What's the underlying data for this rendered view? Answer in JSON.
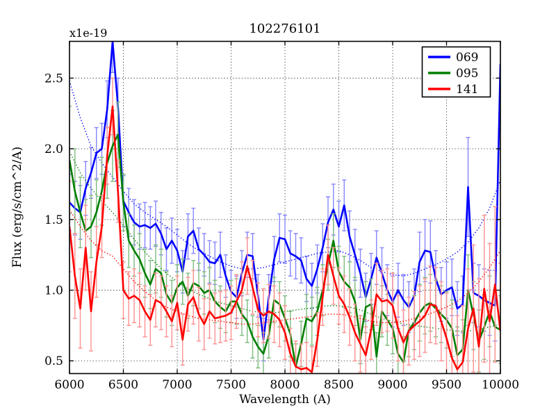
{
  "chart": {
    "title": "102276101",
    "offset_label": "x1e-19",
    "xlabel": "Wavelength (A)",
    "ylabel": "Flux (erg/s/cm^2/A)"
  },
  "chart_data": {
    "type": "line",
    "title": "102276101",
    "xlabel": "Wavelength (A)",
    "ylabel": "Flux (erg/s/cm^2/A)",
    "y_offset_label": "x1e-19",
    "xlim": [
      6000,
      10000
    ],
    "ylim": [
      0.41,
      2.76
    ],
    "grid": true,
    "legend_position": "upper right",
    "xticks": [
      6000,
      6500,
      7000,
      7500,
      8000,
      8500,
      9000,
      9500,
      10000
    ],
    "xtick_labels": [
      "6000",
      "6500",
      "7000",
      "7500",
      "8000",
      "8500",
      "9000",
      "9500",
      "10000"
    ],
    "yticks": [
      0.5,
      1.0,
      1.5,
      2.0,
      2.5
    ],
    "ytick_labels": [
      "0.5",
      "1.0",
      "1.5",
      "2.0",
      "2.5"
    ],
    "x": [
      6000,
      6050,
      6100,
      6150,
      6200,
      6250,
      6300,
      6350,
      6400,
      6450,
      6500,
      6550,
      6600,
      6650,
      6700,
      6750,
      6800,
      6850,
      6900,
      6950,
      7000,
      7050,
      7100,
      7150,
      7200,
      7250,
      7300,
      7350,
      7400,
      7450,
      7500,
      7550,
      7600,
      7650,
      7700,
      7750,
      7800,
      7850,
      7900,
      7950,
      8000,
      8050,
      8100,
      8150,
      8200,
      8250,
      8300,
      8350,
      8400,
      8450,
      8500,
      8550,
      8600,
      8650,
      8700,
      8750,
      8800,
      8850,
      8900,
      8950,
      9000,
      9050,
      9100,
      9150,
      9200,
      9250,
      9300,
      9350,
      9400,
      9450,
      9500,
      9550,
      9600,
      9650,
      9700,
      9750,
      9800,
      9850,
      9900,
      9950,
      10000
    ],
    "x_smooth": [
      6000,
      6100,
      6200,
      6300,
      6400,
      6500,
      6600,
      6700,
      6800,
      6900,
      7000,
      7100,
      7200,
      7300,
      7400,
      7500,
      7600,
      7700,
      7800,
      7900,
      8000,
      8100,
      8200,
      8300,
      8400,
      8500,
      8600,
      8700,
      8800,
      8900,
      9000,
      9100,
      9200,
      9300,
      9400,
      9500,
      9600,
      9700,
      9800,
      9900,
      10000
    ],
    "series": [
      {
        "name": "069",
        "color": "#0000ff",
        "err_color": "#8585ff",
        "flux": [
          1.62,
          1.58,
          1.55,
          1.72,
          1.83,
          1.97,
          2.0,
          2.28,
          2.76,
          2.3,
          1.63,
          1.55,
          1.48,
          1.45,
          1.46,
          1.44,
          1.47,
          1.4,
          1.29,
          1.35,
          1.28,
          1.13,
          1.38,
          1.42,
          1.29,
          1.25,
          1.2,
          1.19,
          1.25,
          1.1,
          0.99,
          0.95,
          1.12,
          1.25,
          1.24,
          0.96,
          0.65,
          0.95,
          1.22,
          1.37,
          1.36,
          1.26,
          1.24,
          1.21,
          1.08,
          1.03,
          1.15,
          1.3,
          1.48,
          1.57,
          1.45,
          1.6,
          1.38,
          1.25,
          1.12,
          0.95,
          1.08,
          1.23,
          1.12,
          1.0,
          0.92,
          1.0,
          0.93,
          0.88,
          0.96,
          1.2,
          1.28,
          1.27,
          1.08,
          0.97,
          1.0,
          1.02,
          0.87,
          0.9,
          1.73,
          0.98,
          0.96,
          0.93,
          0.91,
          0.89,
          2.6
        ],
        "err": [
          0.2,
          0.19,
          0.19,
          0.19,
          0.18,
          0.18,
          0.18,
          0.2,
          0.22,
          0.2,
          0.18,
          0.17,
          0.16,
          0.16,
          0.16,
          0.15,
          0.16,
          0.15,
          0.15,
          0.16,
          0.15,
          0.15,
          0.16,
          0.16,
          0.15,
          0.15,
          0.15,
          0.15,
          0.16,
          0.15,
          0.15,
          0.15,
          0.16,
          0.16,
          0.16,
          0.15,
          0.15,
          0.16,
          0.16,
          0.17,
          0.17,
          0.16,
          0.16,
          0.16,
          0.16,
          0.16,
          0.17,
          0.17,
          0.18,
          0.18,
          0.18,
          0.18,
          0.18,
          0.18,
          0.17,
          0.17,
          0.18,
          0.19,
          0.18,
          0.18,
          0.18,
          0.19,
          0.18,
          0.18,
          0.19,
          0.21,
          0.22,
          0.22,
          0.2,
          0.19,
          0.2,
          0.2,
          0.19,
          0.2,
          0.35,
          0.21,
          0.22,
          0.22,
          0.23,
          0.25,
          0.6
        ],
        "smooth": [
          2.48,
          2.22,
          2.02,
          1.9,
          1.8,
          1.7,
          1.61,
          1.55,
          1.5,
          1.45,
          1.39,
          1.33,
          1.28,
          1.24,
          1.2,
          1.17,
          1.15,
          1.15,
          1.16,
          1.18,
          1.2,
          1.22,
          1.24,
          1.26,
          1.27,
          1.28,
          1.25,
          1.21,
          1.16,
          1.13,
          1.11,
          1.1,
          1.12,
          1.15,
          1.18,
          1.22,
          1.27,
          1.34,
          1.44,
          1.58,
          1.78
        ]
      },
      {
        "name": "095",
        "color": "#007f00",
        "err_color": "#7dbb7d",
        "flux": [
          1.92,
          1.7,
          1.55,
          1.42,
          1.45,
          1.55,
          1.7,
          1.9,
          2.02,
          2.1,
          1.62,
          1.35,
          1.28,
          1.22,
          1.12,
          1.04,
          1.15,
          1.12,
          0.97,
          0.91,
          1.02,
          1.06,
          0.96,
          1.05,
          1.03,
          0.98,
          1.0,
          0.92,
          0.88,
          0.85,
          0.92,
          0.92,
          0.83,
          0.78,
          0.67,
          0.6,
          0.55,
          0.68,
          0.93,
          0.9,
          0.8,
          0.69,
          0.46,
          0.62,
          0.8,
          0.78,
          0.85,
          1.0,
          1.18,
          1.35,
          1.13,
          1.06,
          1.02,
          0.92,
          0.65,
          0.88,
          0.9,
          0.53,
          0.85,
          0.79,
          0.73,
          0.55,
          0.49,
          0.72,
          0.77,
          0.84,
          0.89,
          0.91,
          0.87,
          0.83,
          0.79,
          0.73,
          0.54,
          0.58,
          1.0,
          0.82,
          0.64,
          0.74,
          0.85,
          0.74,
          0.72
        ],
        "err": [
          0.38,
          0.3,
          0.25,
          0.22,
          0.22,
          0.23,
          0.24,
          0.25,
          0.25,
          0.23,
          0.2,
          0.19,
          0.18,
          0.18,
          0.17,
          0.17,
          0.17,
          0.17,
          0.16,
          0.16,
          0.16,
          0.16,
          0.16,
          0.16,
          0.16,
          0.15,
          0.16,
          0.15,
          0.15,
          0.15,
          0.15,
          0.16,
          0.15,
          0.15,
          0.15,
          0.15,
          0.15,
          0.16,
          0.16,
          0.16,
          0.16,
          0.16,
          0.16,
          0.16,
          0.17,
          0.17,
          0.17,
          0.18,
          0.18,
          0.19,
          0.18,
          0.18,
          0.18,
          0.17,
          0.17,
          0.18,
          0.18,
          0.17,
          0.18,
          0.18,
          0.18,
          0.18,
          0.18,
          0.19,
          0.19,
          0.2,
          0.2,
          0.2,
          0.2,
          0.2,
          0.2,
          0.2,
          0.2,
          0.21,
          0.25,
          0.24,
          0.22,
          0.23,
          0.25,
          0.24,
          0.24
        ],
        "smooth": [
          1.98,
          1.83,
          1.72,
          1.63,
          1.55,
          1.46,
          1.36,
          1.27,
          1.19,
          1.12,
          1.06,
          1.01,
          0.97,
          0.94,
          0.91,
          0.89,
          0.87,
          0.85,
          0.84,
          0.84,
          0.85,
          0.86,
          0.87,
          0.88,
          0.89,
          0.89,
          0.88,
          0.86,
          0.83,
          0.8,
          0.78,
          0.76,
          0.75,
          0.74,
          0.73,
          0.72,
          0.71,
          0.71,
          0.72,
          0.74,
          0.76
        ]
      },
      {
        "name": "141",
        "color": "#ff0000",
        "err_color": "#ff9090",
        "flux": [
          1.45,
          1.1,
          0.87,
          1.3,
          0.85,
          1.2,
          1.45,
          1.95,
          2.3,
          1.7,
          1.0,
          0.94,
          0.96,
          0.93,
          0.85,
          0.79,
          0.93,
          0.91,
          0.85,
          0.78,
          0.91,
          0.65,
          0.9,
          0.95,
          0.83,
          0.76,
          0.85,
          0.8,
          0.81,
          0.82,
          0.84,
          0.92,
          1.0,
          1.17,
          1.02,
          0.86,
          0.82,
          0.85,
          0.83,
          0.79,
          0.7,
          0.55,
          0.46,
          0.44,
          0.45,
          0.42,
          0.65,
          0.95,
          1.25,
          1.1,
          0.96,
          0.9,
          0.81,
          0.7,
          0.62,
          0.54,
          0.72,
          0.97,
          0.92,
          0.93,
          0.89,
          0.73,
          0.63,
          0.71,
          0.75,
          0.78,
          0.82,
          0.9,
          0.89,
          0.78,
          0.66,
          0.52,
          0.44,
          0.49,
          0.73,
          0.87,
          0.6,
          1.01,
          0.78,
          1.04,
          0.71
        ],
        "err": [
          0.32,
          0.3,
          0.28,
          0.3,
          0.28,
          0.25,
          0.22,
          0.2,
          0.2,
          0.22,
          0.2,
          0.19,
          0.19,
          0.19,
          0.18,
          0.18,
          0.19,
          0.19,
          0.18,
          0.18,
          0.19,
          0.18,
          0.19,
          0.19,
          0.19,
          0.18,
          0.19,
          0.18,
          0.18,
          0.18,
          0.19,
          0.19,
          0.2,
          0.2,
          0.19,
          0.19,
          0.19,
          0.19,
          0.2,
          0.19,
          0.19,
          0.18,
          0.18,
          0.18,
          0.18,
          0.18,
          0.19,
          0.2,
          0.21,
          0.2,
          0.2,
          0.2,
          0.2,
          0.2,
          0.2,
          0.2,
          0.21,
          0.22,
          0.22,
          0.22,
          0.23,
          0.23,
          0.23,
          0.24,
          0.24,
          0.25,
          0.26,
          0.27,
          0.27,
          0.28,
          0.32,
          0.35,
          0.38,
          0.4,
          0.42,
          0.45,
          0.48,
          0.52,
          0.55,
          0.55,
          0.48
        ],
        "smooth": [
          1.57,
          1.45,
          1.35,
          1.28,
          1.24,
          1.15,
          1.06,
          0.99,
          0.93,
          0.88,
          0.85,
          0.82,
          0.8,
          0.79,
          0.78,
          0.77,
          0.76,
          0.76,
          0.77,
          0.78,
          0.79,
          0.8,
          0.81,
          0.82,
          0.83,
          0.83,
          0.82,
          0.8,
          0.78,
          0.77,
          0.77,
          0.78,
          0.8,
          0.82,
          0.85,
          0.88,
          0.92,
          0.98,
          1.06,
          1.16,
          1.28
        ]
      }
    ]
  }
}
